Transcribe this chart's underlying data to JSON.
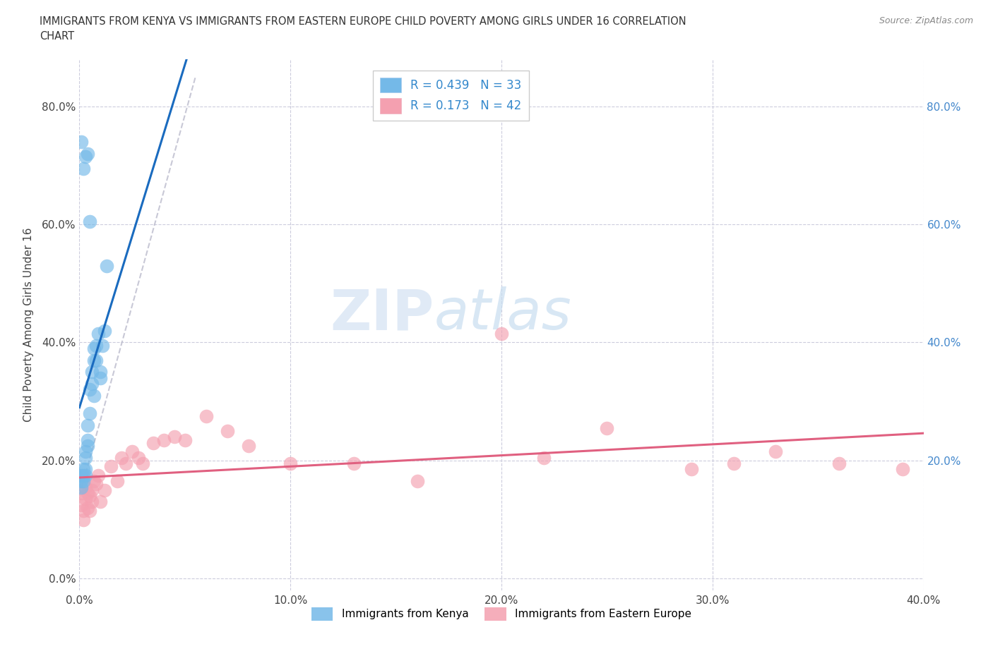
{
  "title_line1": "IMMIGRANTS FROM KENYA VS IMMIGRANTS FROM EASTERN EUROPE CHILD POVERTY AMONG GIRLS UNDER 16 CORRELATION",
  "title_line2": "CHART",
  "source": "Source: ZipAtlas.com",
  "ylabel": "Child Poverty Among Girls Under 16",
  "xlim": [
    0.0,
    0.4
  ],
  "ylim": [
    -0.02,
    0.88
  ],
  "xtick_labels": [
    "0.0%",
    "10.0%",
    "20.0%",
    "30.0%",
    "40.0%"
  ],
  "xtick_vals": [
    0.0,
    0.1,
    0.2,
    0.3,
    0.4
  ],
  "ytick_labels": [
    "0.0%",
    "20.0%",
    "40.0%",
    "60.0%",
    "80.0%"
  ],
  "ytick_vals": [
    0.0,
    0.2,
    0.4,
    0.6,
    0.8
  ],
  "kenya_color": "#74b9e8",
  "eastern_color": "#f4a0b0",
  "kenya_trend_color": "#1a6bbf",
  "eastern_trend_color": "#e06080",
  "kenya_R": 0.439,
  "kenya_N": 33,
  "eastern_R": 0.173,
  "eastern_N": 42,
  "watermark": "ZIPatlas",
  "ref_line_color": "#bbbbcc",
  "kenya_x": [
    0.001,
    0.001,
    0.001,
    0.002,
    0.002,
    0.002,
    0.003,
    0.003,
    0.003,
    0.003,
    0.004,
    0.004,
    0.004,
    0.005,
    0.005,
    0.006,
    0.006,
    0.007,
    0.007,
    0.008,
    0.008,
    0.009,
    0.01,
    0.01,
    0.011,
    0.012,
    0.013,
    0.002,
    0.003,
    0.004,
    0.001,
    0.005,
    0.007
  ],
  "kenya_y": [
    0.155,
    0.165,
    0.175,
    0.165,
    0.175,
    0.185,
    0.175,
    0.185,
    0.205,
    0.215,
    0.225,
    0.235,
    0.26,
    0.28,
    0.32,
    0.33,
    0.35,
    0.37,
    0.39,
    0.37,
    0.395,
    0.415,
    0.34,
    0.35,
    0.395,
    0.42,
    0.53,
    0.695,
    0.715,
    0.72,
    0.74,
    0.605,
    0.31
  ],
  "eastern_x": [
    0.001,
    0.001,
    0.002,
    0.002,
    0.003,
    0.003,
    0.004,
    0.004,
    0.005,
    0.005,
    0.006,
    0.006,
    0.007,
    0.008,
    0.009,
    0.01,
    0.012,
    0.015,
    0.018,
    0.02,
    0.022,
    0.025,
    0.028,
    0.03,
    0.035,
    0.04,
    0.045,
    0.05,
    0.06,
    0.07,
    0.08,
    0.1,
    0.13,
    0.16,
    0.2,
    0.22,
    0.25,
    0.29,
    0.31,
    0.33,
    0.36,
    0.39
  ],
  "eastern_y": [
    0.125,
    0.145,
    0.1,
    0.115,
    0.135,
    0.155,
    0.12,
    0.145,
    0.115,
    0.14,
    0.13,
    0.15,
    0.165,
    0.16,
    0.175,
    0.13,
    0.15,
    0.19,
    0.165,
    0.205,
    0.195,
    0.215,
    0.205,
    0.195,
    0.23,
    0.235,
    0.24,
    0.235,
    0.275,
    0.25,
    0.225,
    0.195,
    0.195,
    0.165,
    0.415,
    0.205,
    0.255,
    0.185,
    0.195,
    0.215,
    0.195,
    0.185
  ]
}
